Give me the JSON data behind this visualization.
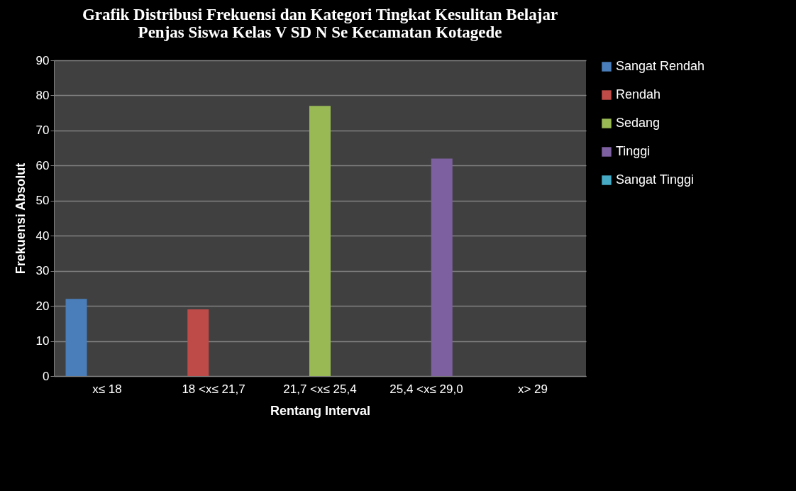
{
  "chart_data": {
    "type": "bar",
    "title": "Grafik Distribusi Frekuensi dan Kategori Tingkat Kesulitan Belajar\nPenjas Siswa Kelas V SD N Se Kecamatan Kotagede",
    "xlabel": "Rentang Interval",
    "ylabel": "Frekuensi Absolut",
    "categories": [
      "x≤ 18",
      "18 <x≤ 21,7",
      "21,7 <x≤ 25,4",
      "25,4 <x≤ 29,0",
      "x> 29"
    ],
    "series": [
      {
        "name": "Sangat Rendah",
        "color": "#4a7ebb",
        "values": [
          22,
          null,
          null,
          null,
          null
        ]
      },
      {
        "name": "Rendah",
        "color": "#be4b48",
        "values": [
          null,
          19,
          null,
          null,
          null
        ]
      },
      {
        "name": "Sedang",
        "color": "#98b954",
        "values": [
          null,
          null,
          77,
          null,
          null
        ]
      },
      {
        "name": "Tinggi",
        "color": "#7d60a0",
        "values": [
          null,
          null,
          null,
          62,
          null
        ]
      },
      {
        "name": "Sangat Tinggi",
        "color": "#46aac5",
        "values": [
          null,
          null,
          null,
          null,
          0
        ]
      }
    ],
    "ylim": [
      0,
      90
    ],
    "yticks": [
      0,
      10,
      20,
      30,
      40,
      50,
      60,
      70,
      80,
      90
    ],
    "grid": "y",
    "legend": "right"
  }
}
